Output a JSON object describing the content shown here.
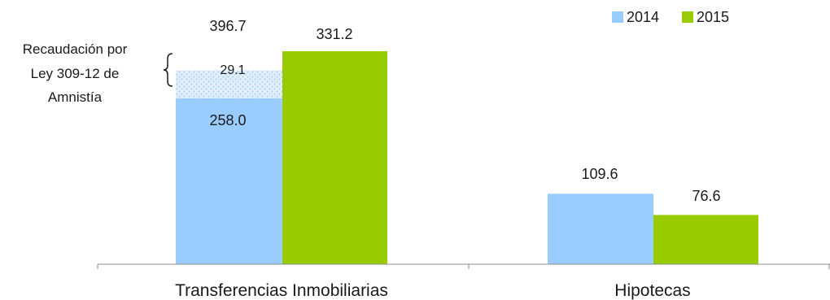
{
  "chart_data": {
    "type": "bar",
    "categories": [
      "Transferencias Inmobiliarias",
      "Hipotecas"
    ],
    "series": [
      {
        "name": "2014",
        "color": "#99ccff",
        "values": [
          287.1,
          109.6
        ]
      },
      {
        "name": "2015",
        "color": "#99cc00",
        "values": [
          331.2,
          76.6
        ]
      }
    ],
    "stack_segment": {
      "series": "2014",
      "category": "Transferencias Inmobiliarias",
      "base_value": 258.0,
      "extra_value": 29.1,
      "extra_fill": "#c6e0f7",
      "extra_dots": "#99ccff"
    },
    "data_labels": {
      "s2014_base": "258.0",
      "s2014_extra": "29.1",
      "s2014_total": "396.7",
      "s2015_transfer": "331.2",
      "s2014_hip": "109.6",
      "s2015_hip": "76.6"
    },
    "annotation": [
      "Recaudación por",
      "Ley 309-12 de",
      "Amnistía"
    ],
    "legend_position": "top-right",
    "ylim": [
      0,
      360
    ],
    "grid": false
  }
}
